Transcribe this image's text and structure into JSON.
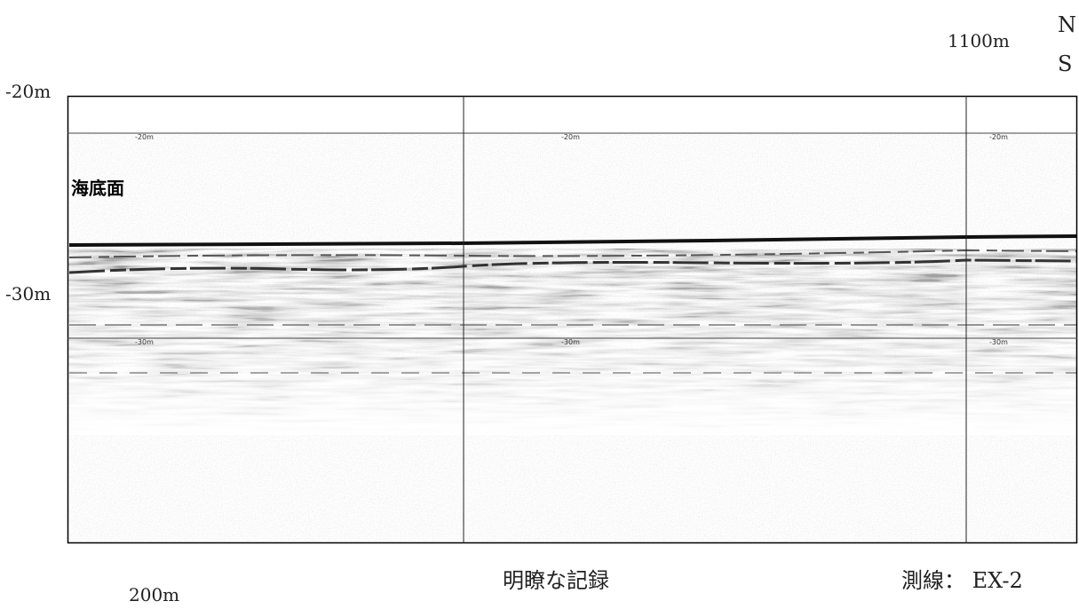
{
  "labels": {
    "north": "N",
    "south": "S",
    "top_right_distance": "1100m",
    "bottom_left_distance": "200m",
    "depth_top": "-20m",
    "depth_mid": "-30m",
    "seabed": "海底面",
    "caption": "明瞭な記録",
    "survey_line": "測線： EX-2"
  },
  "panel_depth_labels": [
    {
      "top": "-20m",
      "mid": "-30m"
    },
    {
      "top": "-20m",
      "mid": "-30m"
    },
    {
      "top": "-20m",
      "mid": "-30m"
    }
  ]
}
